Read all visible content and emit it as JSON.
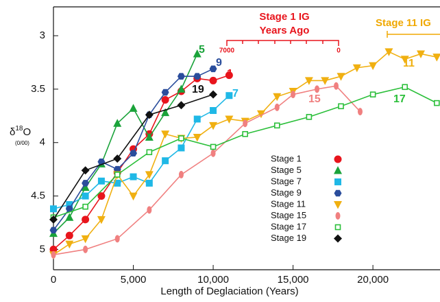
{
  "chart_data": {
    "type": "line",
    "x_label": "Length of Deglaciation (Years)",
    "y_label": {
      "symbol": "δ",
      "superscript": "18",
      "element": "O",
      "unit": "(0/00)"
    },
    "xlim": [
      0,
      24200
    ],
    "ylim": [
      5.19,
      2.73
    ],
    "xticks": [
      0,
      {
        "value": 5000,
        "label": "5,000"
      },
      {
        "value": 10000,
        "label": "10,000"
      },
      {
        "value": 15000,
        "label": "15,000"
      },
      {
        "value": 20000,
        "label": "20,000"
      }
    ],
    "yticks": [
      3,
      3.5,
      4,
      4.5,
      5
    ],
    "legend": true,
    "annotations": [
      {
        "color": "#e8141c",
        "lines": [
          "Stage 1  IG",
          "Years Ago"
        ],
        "scale_start": "7000",
        "scale_end": "0"
      },
      {
        "color": "#f0a800",
        "lines": [
          "Stage 11  IG"
        ]
      }
    ],
    "series": [
      {
        "name": "Stage 1",
        "label": "1",
        "color": "#e8141c",
        "marker": "circle",
        "x": [
          0,
          1000,
          2000,
          3000,
          4000,
          5000,
          6000,
          7000,
          8000,
          9000,
          10000,
          11000
        ],
        "values": [
          5.0,
          4.87,
          4.72,
          4.5,
          4.28,
          4.06,
          3.92,
          3.6,
          3.52,
          3.4,
          3.42,
          3.37
        ]
      },
      {
        "name": "Stage 5",
        "label": "5",
        "color": "#1aa33a",
        "marker": "triangle",
        "x": [
          0,
          1000,
          2000,
          3000,
          4000,
          5000,
          6000,
          7000,
          8000,
          9000
        ],
        "values": [
          4.85,
          4.7,
          4.42,
          4.2,
          3.82,
          3.68,
          3.95,
          3.72,
          3.5,
          3.17
        ]
      },
      {
        "name": "Stage 7",
        "label": "7",
        "color": "#1fb8e6",
        "marker": "square",
        "x": [
          0,
          1000,
          2000,
          3000,
          4000,
          5000,
          6000,
          7000,
          8000,
          9000,
          10000,
          11000
        ],
        "values": [
          4.62,
          4.58,
          4.5,
          4.36,
          4.38,
          4.32,
          4.38,
          4.17,
          4.05,
          3.78,
          3.7,
          3.56
        ]
      },
      {
        "name": "Stage 9",
        "label": "9",
        "color": "#2a4d9c",
        "marker": "hexagon",
        "x": [
          0,
          1000,
          2000,
          3000,
          4000,
          5000,
          6000,
          7000,
          8000,
          9000,
          10000
        ],
        "values": [
          4.82,
          4.62,
          4.38,
          4.18,
          4.25,
          4.1,
          3.74,
          3.53,
          3.38,
          3.38,
          3.31
        ]
      },
      {
        "name": "Stage 11",
        "label": "11",
        "color": "#f0b011",
        "marker": "triangle-down",
        "x": [
          0,
          1000,
          2000,
          3000,
          4000,
          5000,
          6000,
          7000,
          8000,
          9000,
          10000,
          11000,
          12000,
          13000,
          14000,
          15000,
          16000,
          17000,
          18000,
          19000,
          20000,
          21000,
          22000,
          23000,
          24000
        ],
        "values": [
          5.05,
          4.95,
          4.9,
          4.72,
          4.3,
          4.5,
          4.3,
          3.92,
          3.96,
          3.95,
          3.84,
          3.78,
          3.8,
          3.73,
          3.57,
          3.52,
          3.42,
          3.42,
          3.38,
          3.3,
          3.28,
          3.15,
          3.22,
          3.17,
          3.2
        ]
      },
      {
        "name": "Stage 15",
        "label": "15",
        "color": "#f08080",
        "marker": "ellipse",
        "x": [
          0,
          2000,
          4000,
          6000,
          8000,
          10000,
          12000,
          14000,
          15000,
          16500,
          17700,
          19200
        ],
        "values": [
          5.05,
          5.0,
          4.9,
          4.63,
          4.3,
          4.1,
          3.82,
          3.67,
          3.55,
          3.5,
          3.47,
          3.71
        ]
      },
      {
        "name": "Stage 17",
        "label": "17",
        "color": "#2bbf3a",
        "marker": "open-square",
        "x": [
          0,
          2000,
          4000,
          6000,
          8000,
          10000,
          12000,
          14000,
          16000,
          18000,
          20000,
          22000,
          24000
        ],
        "values": [
          4.7,
          4.6,
          4.3,
          4.09,
          3.96,
          4.04,
          3.92,
          3.84,
          3.76,
          3.66,
          3.55,
          3.48,
          3.63
        ]
      },
      {
        "name": "Stage 19",
        "label": "19",
        "color": "#111111",
        "marker": "diamond",
        "x": [
          0,
          2000,
          4000,
          6000,
          8000,
          10000
        ],
        "values": [
          4.72,
          4.26,
          4.15,
          3.74,
          3.65,
          3.55
        ]
      }
    ]
  }
}
